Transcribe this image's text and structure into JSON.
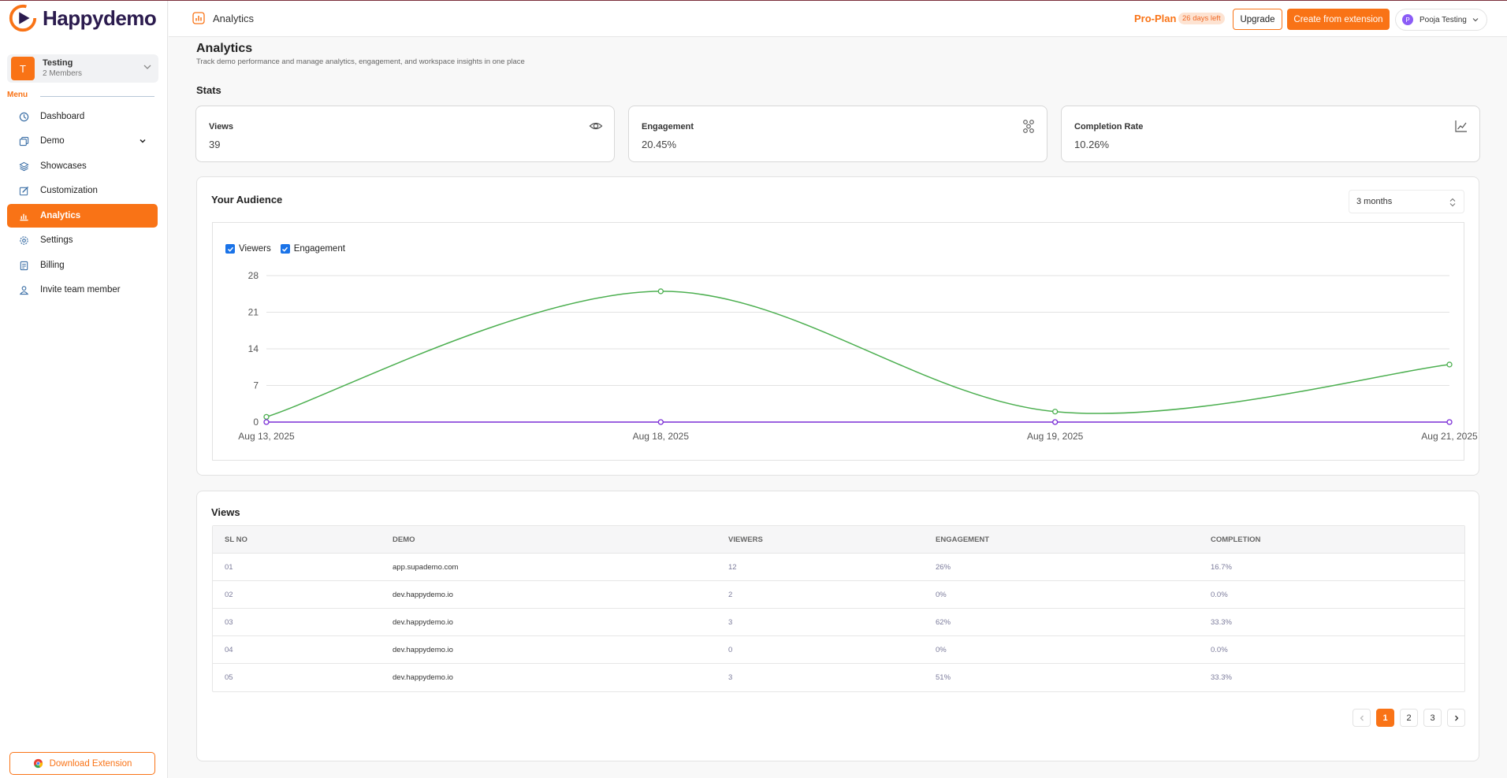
{
  "brand": {
    "name": "Happydemo",
    "accent": "#f97316"
  },
  "team": {
    "initial": "T",
    "name": "Testing",
    "members": "2 Members"
  },
  "menu_label": "Menu",
  "nav": [
    {
      "label": "Dashboard",
      "icon": "dashboard-icon"
    },
    {
      "label": "Demo",
      "icon": "demo-icon"
    },
    {
      "label": "Showcases",
      "icon": "showcases-icon"
    },
    {
      "label": "Customization",
      "icon": "customization-icon"
    },
    {
      "label": "Analytics",
      "icon": "analytics-icon",
      "active": true
    },
    {
      "label": "Settings",
      "icon": "settings-icon"
    },
    {
      "label": "Billing",
      "icon": "billing-icon"
    },
    {
      "label": "Invite team member",
      "icon": "invite-icon"
    }
  ],
  "download_extension": "Download Extension",
  "topbar": {
    "title": "Analytics",
    "plan": "Pro-Plan",
    "days_left": "26 days left",
    "upgrade": "Upgrade",
    "create": "Create from extension",
    "user_initial": "P",
    "user_name": "Pooja Testing"
  },
  "page": {
    "title": "Analytics",
    "subtitle": "Track demo performance and manage analytics, engagement, and workspace insights in one place",
    "stats_title": "Stats"
  },
  "stats": [
    {
      "label": "Views",
      "value": "39",
      "icon": "eye-icon"
    },
    {
      "label": "Engagement",
      "value": "20.45%",
      "icon": "engagement-icon"
    },
    {
      "label": "Completion Rate",
      "value": "10.26%",
      "icon": "line-chart-icon"
    }
  ],
  "audience": {
    "title": "Your Audience",
    "range": "3 months"
  },
  "chart_data": {
    "type": "line",
    "categories": [
      "Aug 13, 2025",
      "Aug 18, 2025",
      "Aug 19, 2025",
      "Aug 21, 2025"
    ],
    "series": [
      {
        "name": "Viewers",
        "color": "#4caf50",
        "values": [
          1,
          25,
          2,
          11
        ]
      },
      {
        "name": "Engagement",
        "color": "#7b2fd6",
        "values": [
          0,
          0,
          0,
          0
        ]
      }
    ],
    "yticks": [
      0,
      7,
      14,
      21,
      28
    ],
    "ylim": [
      0,
      28
    ],
    "grid": true,
    "legend": "top-left"
  },
  "views": {
    "title": "Views",
    "columns": [
      "SL NO",
      "DEMO",
      "VIEWERS",
      "ENGAGEMENT",
      "COMPLETION"
    ],
    "rows": [
      [
        "01",
        "app.supademo.com",
        "12",
        "26%",
        "16.7%"
      ],
      [
        "02",
        "dev.happydemo.io",
        "2",
        "0%",
        "0.0%"
      ],
      [
        "03",
        "dev.happydemo.io",
        "3",
        "62%",
        "33.3%"
      ],
      [
        "04",
        "dev.happydemo.io",
        "0",
        "0%",
        "0.0%"
      ],
      [
        "05",
        "dev.happydemo.io",
        "3",
        "51%",
        "33.3%"
      ]
    ],
    "pages": [
      "1",
      "2",
      "3"
    ],
    "current_page": "1"
  }
}
